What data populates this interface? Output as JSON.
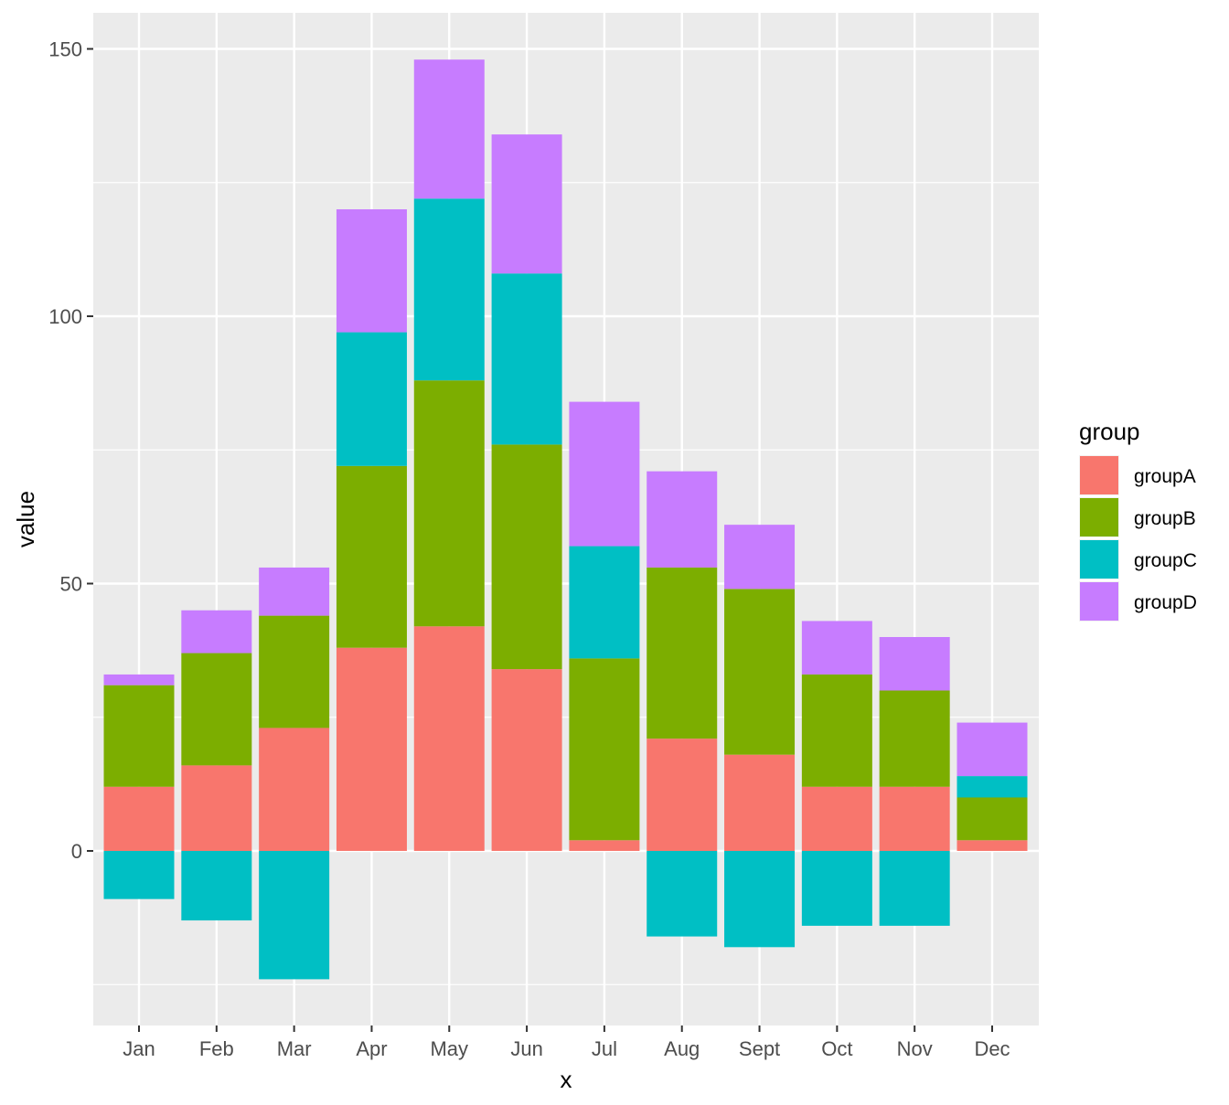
{
  "chart_data": {
    "type": "bar",
    "stacked": true,
    "categories": [
      "Jan",
      "Feb",
      "Mar",
      "Apr",
      "May",
      "Jun",
      "Jul",
      "Aug",
      "Sept",
      "Oct",
      "Nov",
      "Dec"
    ],
    "series": [
      {
        "name": "groupA",
        "color": "#F8766D",
        "values": [
          12,
          16,
          23,
          38,
          42,
          34,
          2,
          21,
          18,
          12,
          12,
          2
        ]
      },
      {
        "name": "groupB",
        "color": "#7CAE00",
        "values": [
          19,
          21,
          21,
          34,
          46,
          42,
          34,
          32,
          31,
          21,
          18,
          8
        ]
      },
      {
        "name": "groupC",
        "color": "#00BFC4",
        "values": [
          -9,
          -13,
          -24,
          25,
          34,
          32,
          21,
          -16,
          -18,
          -14,
          -14,
          4
        ]
      },
      {
        "name": "groupD",
        "color": "#C77CFF",
        "values": [
          2,
          8,
          9,
          23,
          26,
          26,
          27,
          18,
          12,
          10,
          10,
          10
        ]
      }
    ],
    "xlabel": "x",
    "ylabel": "value",
    "ylim": [
      -33,
      157
    ],
    "yticks": [
      0,
      50,
      100,
      150
    ],
    "grid": true,
    "legend": {
      "title": "group",
      "position": "right"
    },
    "panel_background": "#EBEBEB"
  }
}
